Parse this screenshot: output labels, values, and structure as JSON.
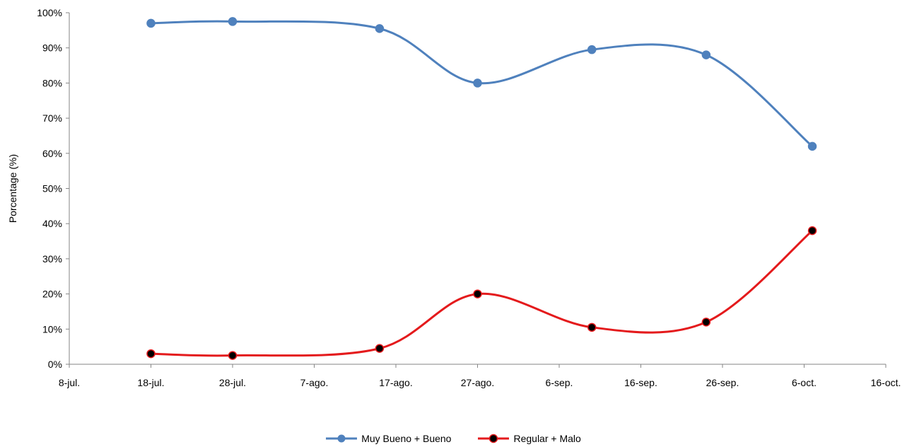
{
  "chart_data": {
    "type": "line",
    "title": "",
    "xlabel": "",
    "ylabel": "Porcentage (%)",
    "ylim": [
      0,
      100
    ],
    "y_ticks": [
      "0%",
      "10%",
      "20%",
      "30%",
      "40%",
      "50%",
      "60%",
      "70%",
      "80%",
      "90%",
      "100%"
    ],
    "x_tick_labels": [
      "8-jul.",
      "18-jul.",
      "28-jul.",
      "7-ago.",
      "17-ago.",
      "27-ago.",
      "6-sep.",
      "16-sep.",
      "26-sep.",
      "6-oct.",
      "16-oct."
    ],
    "x_tick_dates": [
      "08-07",
      "18-07",
      "28-07",
      "07-08",
      "17-08",
      "27-08",
      "06-09",
      "16-09",
      "26-09",
      "06-10",
      "16-10"
    ],
    "x": [
      "18-07",
      "28-07",
      "15-08",
      "27-08",
      "10-09",
      "24-09",
      "07-10"
    ],
    "series": [
      {
        "name": "Muy Bueno + Bueno",
        "color": "#4F81BD",
        "marker_color": "#4F81BD",
        "values": [
          97,
          97.5,
          95.5,
          80,
          89.5,
          88,
          62
        ]
      },
      {
        "name": "Regular + Malo",
        "color": "#E41A1C",
        "marker_color": "#000000",
        "values": [
          3,
          2.5,
          4.5,
          20,
          10.5,
          12,
          38
        ]
      }
    ],
    "grid": false,
    "legend_position": "bottom"
  }
}
